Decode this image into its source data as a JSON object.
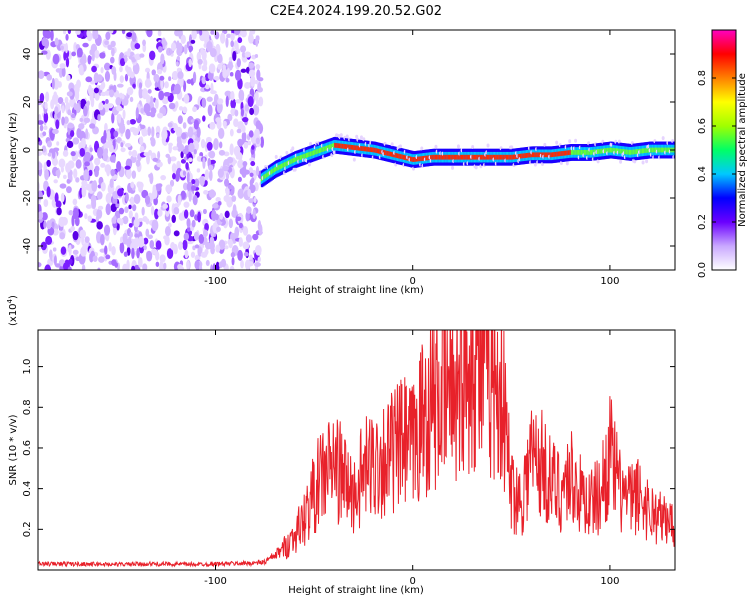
{
  "title": "C2E4.2024.199.20.52.G02",
  "chart_data": [
    {
      "type": "heatmap",
      "xlabel": "Height of straight line (km)",
      "ylabel": "Frequency (Hz)",
      "xlim": [
        -190,
        133
      ],
      "ylim": [
        -50,
        50
      ],
      "xticks": [
        -100,
        0,
        100
      ],
      "xtick_labels": [
        "-100",
        "0",
        "100"
      ],
      "yticks": [
        -40,
        -20,
        0,
        20,
        40
      ],
      "ytick_labels": [
        "-40",
        "-20",
        "0",
        "20",
        "40"
      ],
      "grid": false,
      "colorbar": {
        "label": "Normalized spectral amplitude",
        "range": [
          0.0,
          1.0
        ],
        "ticks": [
          0.0,
          0.2,
          0.4,
          0.6,
          0.8
        ],
        "tick_labels": [
          "0.0",
          "0.2",
          "0.4",
          "0.6",
          "0.8"
        ],
        "colormap": [
          "#ffffff",
          "#c9a8ff",
          "#6a00ff",
          "#0000ff",
          "#00c8ff",
          "#00ff66",
          "#a0ff00",
          "#ffff00",
          "#ff8000",
          "#ff0000",
          "#ff00c0"
        ]
      },
      "noise_region_x": [
        -190,
        -77
      ],
      "signal_track": {
        "x": [
          -77,
          -70,
          -60,
          -50,
          -40,
          -30,
          -20,
          -10,
          0,
          10,
          20,
          30,
          40,
          50,
          60,
          70,
          80,
          90,
          100,
          110,
          120,
          133
        ],
        "y": [
          -12,
          -8,
          -4,
          -1,
          2,
          1,
          0,
          -2,
          -4,
          -3,
          -3,
          -3,
          -3,
          -3,
          -2,
          -2,
          -1,
          -1,
          0,
          -1,
          0,
          0
        ]
      }
    },
    {
      "type": "line",
      "xlabel": "Height of straight line (km)",
      "ylabel": "SNR (10 * v/v)",
      "y_multiplier": "(x10",
      "y_multiplier_exp": "4",
      "y_multiplier_close": ")",
      "xlim": [
        -190,
        133
      ],
      "ylim": [
        0,
        11800
      ],
      "xticks": [
        -100,
        0,
        100
      ],
      "xtick_labels": [
        "-100",
        "0",
        "100"
      ],
      "yticks": [
        2000,
        4000,
        6000,
        8000,
        10000
      ],
      "ytick_labels": [
        "0.2",
        "0.4",
        "0.6",
        "0.8",
        "1.0"
      ],
      "grid": false,
      "color": "#e8212a",
      "series": [
        {
          "x": [
            -190,
            -170,
            -150,
            -130,
            -110,
            -90,
            -80,
            -75,
            -70,
            -65,
            -60,
            -55,
            -50,
            -45,
            -40,
            -35,
            -30,
            -25,
            -20,
            -15,
            -10,
            -5,
            0,
            5,
            10,
            15,
            20,
            25,
            28,
            30,
            35,
            40,
            45,
            50,
            55,
            60,
            65,
            70,
            75,
            80,
            85,
            90,
            95,
            100,
            105,
            110,
            115,
            120,
            125,
            130,
            133
          ],
          "y": [
            300,
            300,
            280,
            300,
            280,
            320,
            340,
            400,
            700,
            1100,
            1700,
            2500,
            3800,
            4800,
            5200,
            4500,
            3600,
            4800,
            5200,
            5500,
            5800,
            6200,
            6000,
            7500,
            8200,
            8600,
            9000,
            9800,
            10400,
            10600,
            10000,
            9600,
            9000,
            4000,
            3400,
            5600,
            5300,
            4300,
            3900,
            4700,
            3700,
            3300,
            3700,
            5800,
            3900,
            3400,
            3700,
            2900,
            2600,
            2300,
            2500
          ]
        }
      ]
    }
  ]
}
